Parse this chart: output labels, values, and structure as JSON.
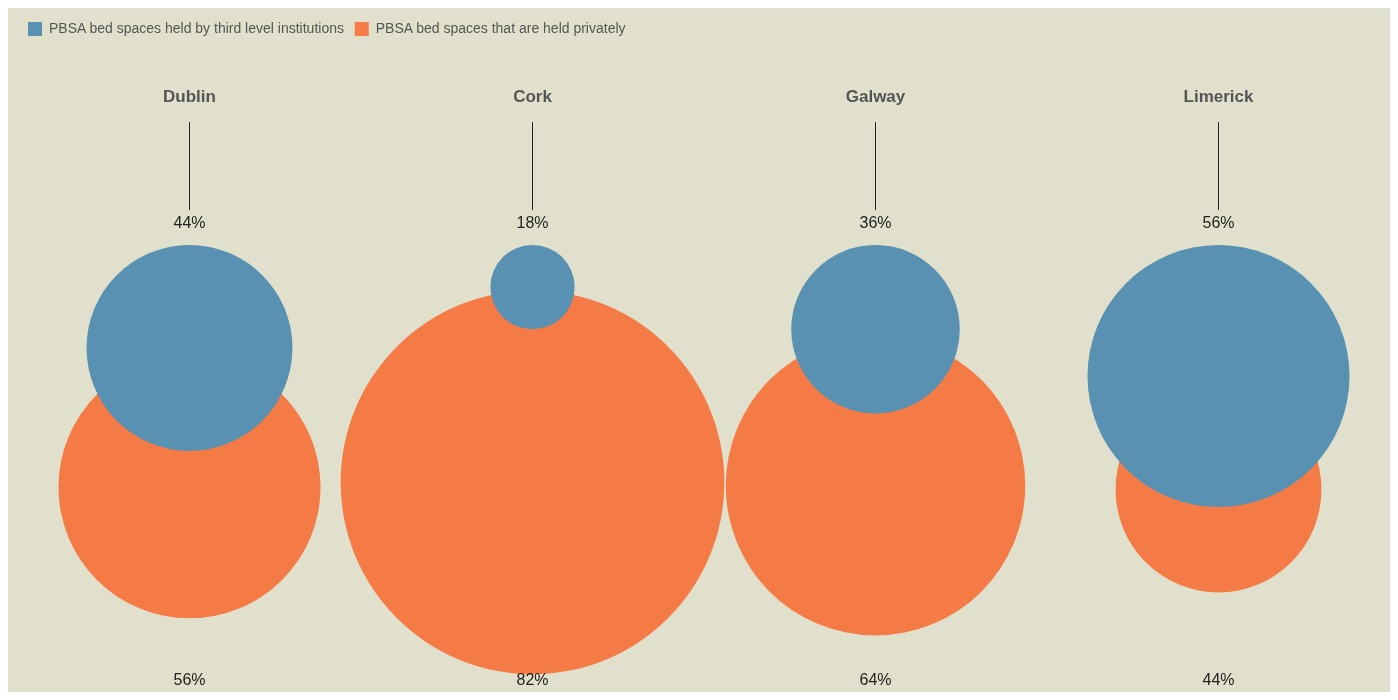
{
  "chart_data": {
    "type": "other",
    "categories": [
      "Dublin",
      "Cork",
      "Galway",
      "Limerick"
    ],
    "legend": "top left",
    "series": [
      {
        "name": "PBSA bed spaces held by third level institutions",
        "color": "#5891b1",
        "values": [
          44,
          18,
          36,
          56
        ],
        "value_labels": [
          "44%",
          "18%",
          "36%",
          "56%"
        ]
      },
      {
        "name": "PBSA bed spaces that are held privately",
        "color": "#f47b45",
        "values": [
          56,
          82,
          64,
          44
        ],
        "value_labels": [
          "56%",
          "82%",
          "64%",
          "44%"
        ]
      }
    ]
  }
}
